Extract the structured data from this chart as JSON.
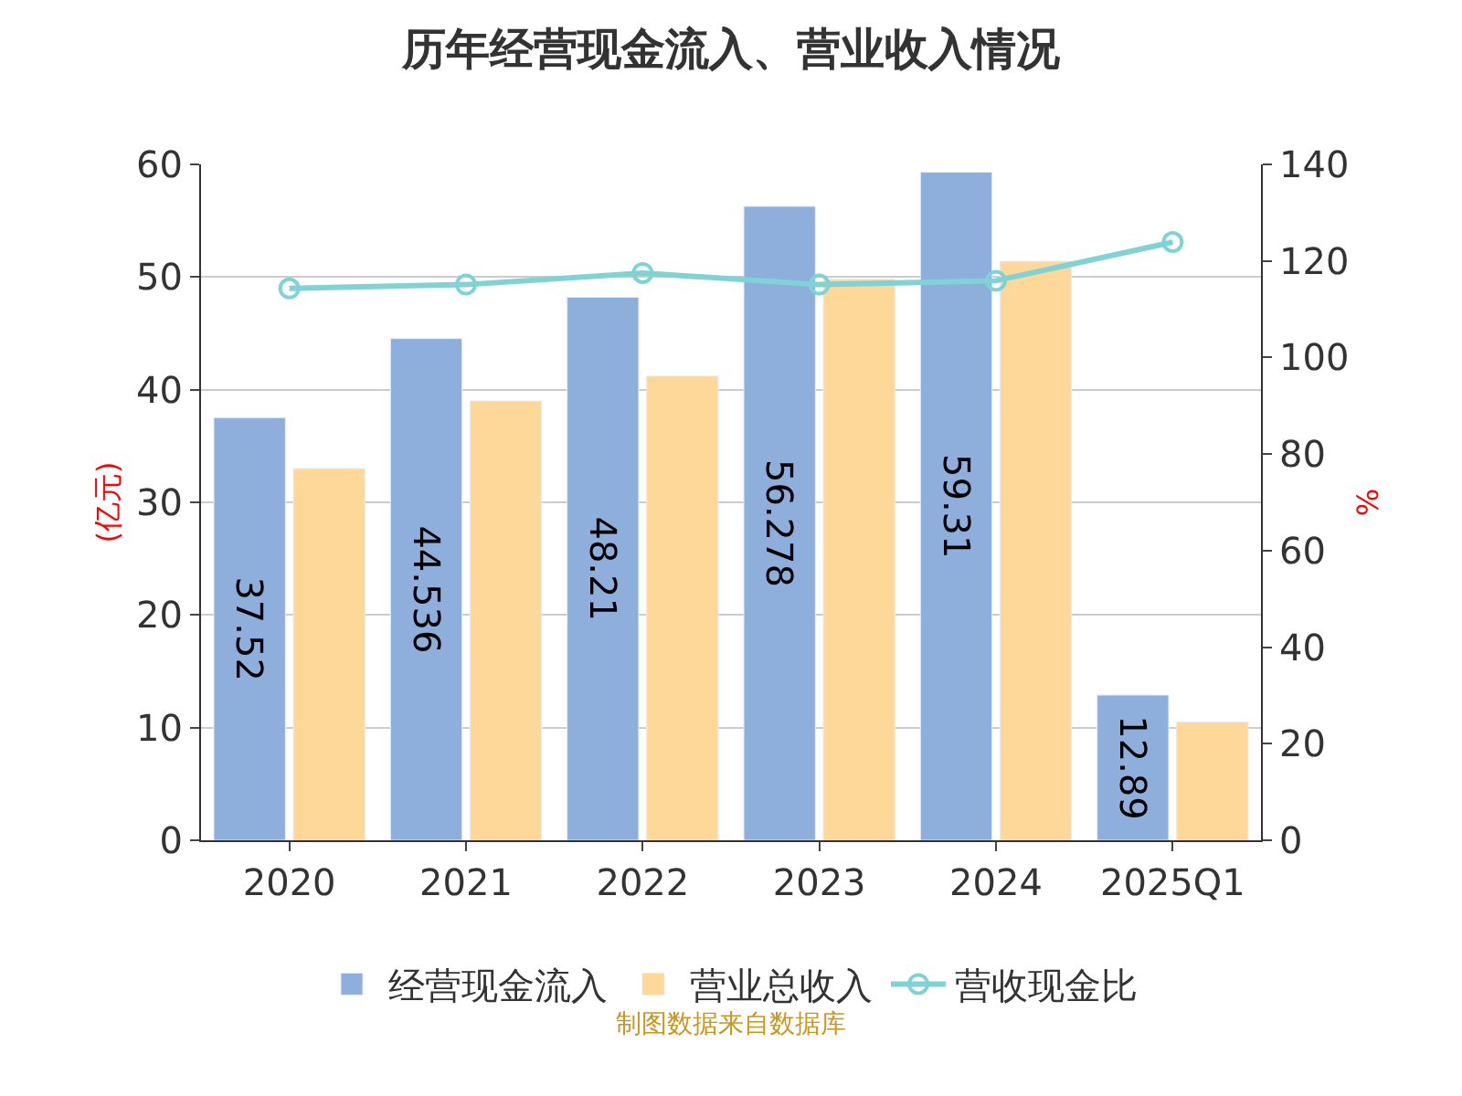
{
  "chart_data": {
    "type": "bar",
    "title": "历年经营现金流入、营业收入情况",
    "categories": [
      "2020",
      "2021",
      "2022",
      "2023",
      "2024",
      "2025Q1"
    ],
    "series": [
      {
        "name": "经营现金流入",
        "color": "#8eaedb",
        "values": [
          37.52,
          44.536,
          48.21,
          56.278,
          59.31,
          12.89
        ],
        "value_labels": [
          "37.52",
          "44.536",
          "48.21",
          "56.278",
          "59.31",
          "12.89"
        ]
      },
      {
        "name": "营业总收入",
        "color": "#fed899",
        "values": [
          33.0,
          39.0,
          41.2,
          49.8,
          51.4,
          10.5
        ]
      },
      {
        "name": "营收现金比",
        "type": "line",
        "axis": "y2",
        "color": "#7fd3d6",
        "marker": "circle",
        "values": [
          114.3,
          115.1,
          117.5,
          115.1,
          115.9,
          123.9
        ]
      }
    ],
    "ylabel": "(亿元)",
    "y2label": "%",
    "ylim": [
      0,
      60
    ],
    "yticks": [
      0,
      10,
      20,
      30,
      40,
      50,
      60
    ],
    "y2lim": [
      0,
      140
    ],
    "y2ticks": [
      0,
      20,
      40,
      60,
      80,
      100,
      120,
      140
    ],
    "grid": "y",
    "legend": "bottom",
    "annotations": [
      "制图数据来自数据库"
    ]
  }
}
